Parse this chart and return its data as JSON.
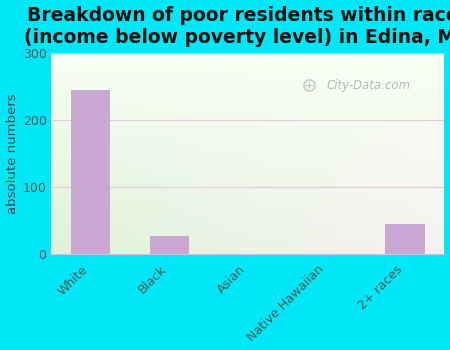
{
  "title": "Breakdown of poor residents within races\n(income below poverty level) in Edina, MO",
  "categories": [
    "White",
    "Black",
    "Asian",
    "Native Hawaiian",
    "2+ races"
  ],
  "values": [
    245,
    27,
    0,
    0,
    45
  ],
  "bar_color": "#c9a8d4",
  "ylabel": "absolute numbers",
  "ylim": [
    0,
    300
  ],
  "yticks": [
    0,
    100,
    200,
    300
  ],
  "bg_outer": "#00e8f8",
  "bg_plot_topleft": "#e0f0e0",
  "bg_plot_bottomright": "#f8fef0",
  "title_fontsize": 13.5,
  "axis_label_fontsize": 9.5,
  "tick_fontsize": 9,
  "watermark": "City-Data.com",
  "grid_color": "#e8c8d8",
  "spine_color": "#cccccc"
}
